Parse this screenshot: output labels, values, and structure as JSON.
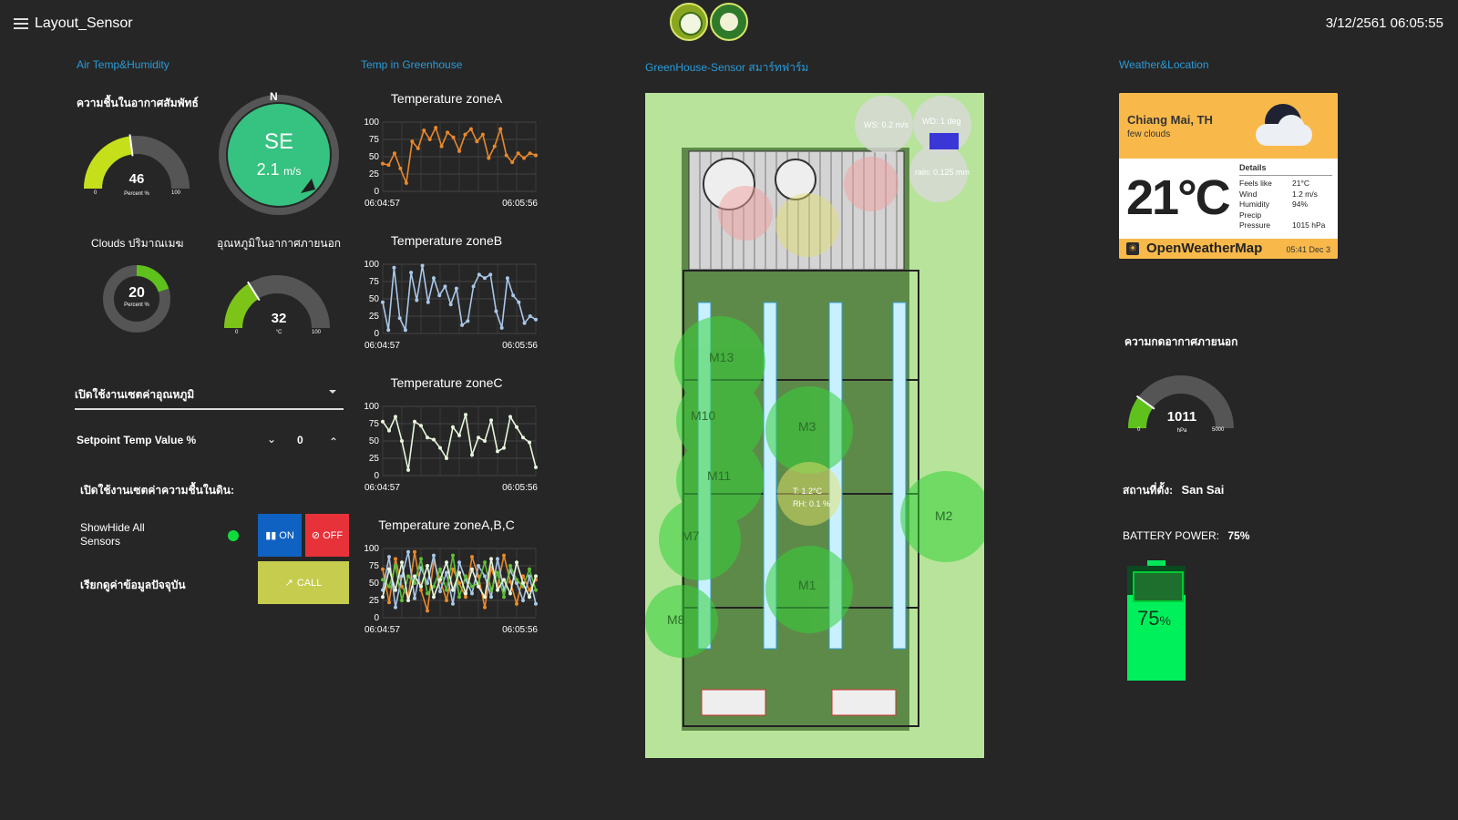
{
  "header": {
    "title": "Layout_Sensor",
    "datetime": "3/12/2561 06:05:55"
  },
  "sections": {
    "air": "Air Temp&Humidity",
    "temp": "Temp in Greenhouse",
    "greenhouse": "GreenHouse-Sensor สมาร์ทฟาร์ม",
    "weather": "Weather&Location"
  },
  "gauges": {
    "humidity": {
      "title": "ความชื้นในอากาศสัมพัทธ์",
      "value": "46",
      "unit": "Percent %",
      "min": "0",
      "max": "100",
      "level": 0.46,
      "color": "#c5e01a"
    },
    "clouds": {
      "title": "Clouds ปริมาณเมฆ",
      "value": "20",
      "unit": "Percent %",
      "level": 0.2,
      "color": "#5fc11c"
    },
    "outside_temp": {
      "title": "อุณหภูมิในอากาศภายนอก",
      "value": "32",
      "unit": "°C",
      "min": "0",
      "max": "100",
      "level": 0.32,
      "color": "#7cc518"
    },
    "pressure": {
      "title": "ความกดอากาศภายนอก",
      "value": "1011",
      "unit": "hPa",
      "min": "0",
      "max": "5000",
      "level": 0.2,
      "color": "#5fc11c"
    }
  },
  "wind": {
    "direction": "SE",
    "speed": "2.1",
    "unit": "m/s",
    "north": "N"
  },
  "controls": {
    "temp_dropdown": "เปิดใช้งานเซตค่าอุณหภูมิ",
    "setpoint_label": "Setpoint Temp Value %",
    "setpoint_value": "0",
    "soil_label": "เปิดใช้งานเซตค่าความชื้นในดิน:",
    "showhide_label": "ShowHide All Sensors",
    "on_label": "ON",
    "off_label": "OFF",
    "call_row_label": "เรียกดูค่าข้อมูลปัจจุบัน",
    "call_label": "CALL"
  },
  "charts": {
    "time_start": "06:04:57",
    "time_end": "06:05:56",
    "y_ticks": [
      "100",
      "75",
      "50",
      "25",
      "0"
    ]
  },
  "chart_data": [
    {
      "type": "line",
      "title": "Temperature zoneA",
      "ylim": [
        0,
        100
      ],
      "series": [
        {
          "color": "#e8892a",
          "values": [
            40,
            38,
            55,
            33,
            12,
            72,
            62,
            88,
            75,
            92,
            65,
            85,
            78,
            58,
            82,
            90,
            72,
            82,
            48,
            65,
            90,
            52,
            42,
            55,
            48,
            55,
            52
          ]
        }
      ]
    },
    {
      "type": "line",
      "title": "Temperature zoneB",
      "ylim": [
        0,
        100
      ],
      "series": [
        {
          "color": "#a9c7e8",
          "values": [
            45,
            5,
            95,
            22,
            5,
            88,
            48,
            98,
            45,
            80,
            55,
            68,
            42,
            65,
            12,
            18,
            68,
            85,
            80,
            85,
            32,
            8,
            80,
            55,
            45,
            15,
            25,
            20
          ]
        }
      ]
    },
    {
      "type": "line",
      "title": "Temperature zoneC",
      "ylim": [
        0,
        100
      ],
      "series": [
        {
          "color": "#e6f5dd",
          "values": [
            78,
            65,
            85,
            50,
            8,
            78,
            72,
            55,
            52,
            40,
            25,
            70,
            58,
            88,
            30,
            55,
            50,
            80,
            35,
            40,
            85,
            70,
            55,
            48,
            12
          ]
        }
      ]
    },
    {
      "type": "line",
      "title": "Temperature zoneA,B,C",
      "ylim": [
        0,
        100
      ],
      "series": [
        {
          "color": "#e8892a",
          "values": [
            70,
            22,
            85,
            45,
            30,
            95,
            40,
            10,
            82,
            55,
            25,
            70,
            50,
            30,
            88,
            60,
            15,
            72,
            45,
            90,
            52,
            20,
            60,
            40,
            55
          ]
        },
        {
          "color": "#a9c7e8",
          "values": [
            40,
            88,
            15,
            60,
            95,
            28,
            72,
            50,
            90,
            38,
            65,
            20,
            80,
            55,
            35,
            75,
            60,
            30,
            85,
            40,
            68,
            50,
            25,
            60,
            20
          ]
        },
        {
          "color": "#5fbf3a",
          "values": [
            55,
            45,
            75,
            25,
            60,
            50,
            85,
            35,
            45,
            70,
            40,
            90,
            30,
            60,
            45,
            50,
            80,
            40,
            65,
            30,
            75,
            55,
            45,
            70,
            40
          ]
        },
        {
          "color": "#e6f5dd",
          "values": [
            30,
            70,
            40,
            80,
            25,
            60,
            45,
            75,
            30,
            55,
            80,
            40,
            65,
            35,
            70,
            45,
            30,
            85,
            40,
            55,
            35,
            80,
            50,
            30,
            60
          ]
        }
      ]
    }
  ],
  "greenhouse_map": {
    "zones": [
      "M13",
      "M10",
      "M11",
      "M7",
      "M8",
      "M3",
      "M1",
      "M2"
    ],
    "readings": {
      "ws": "WS: 0.2 m/s",
      "wd": "WD: 1 deg",
      "rain": "rain: 0.125 mm",
      "t": "T: 1.2°C",
      "rh": "RH: 0.1 %"
    }
  },
  "weather": {
    "city": "Chiang Mai, TH",
    "desc": "few clouds",
    "temp": "21°C",
    "details_title": "Details",
    "details": [
      {
        "k": "Feels like",
        "v": "21°C"
      },
      {
        "k": "Wind",
        "v": "1.2 m/s"
      },
      {
        "k": "Humidity",
        "v": "94%"
      },
      {
        "k": "Precip",
        "v": ""
      },
      {
        "k": "Pressure",
        "v": "1015 hPa"
      }
    ],
    "brand": "OpenWeatherMap",
    "updated": "05:41 Dec 3"
  },
  "location": {
    "label": "สถานที่ตั้ง:",
    "value": "San Sai"
  },
  "battery": {
    "label": "BATTERY POWER:",
    "value": "75%",
    "number": "75",
    "pct_sign": "%",
    "level": 0.75
  }
}
